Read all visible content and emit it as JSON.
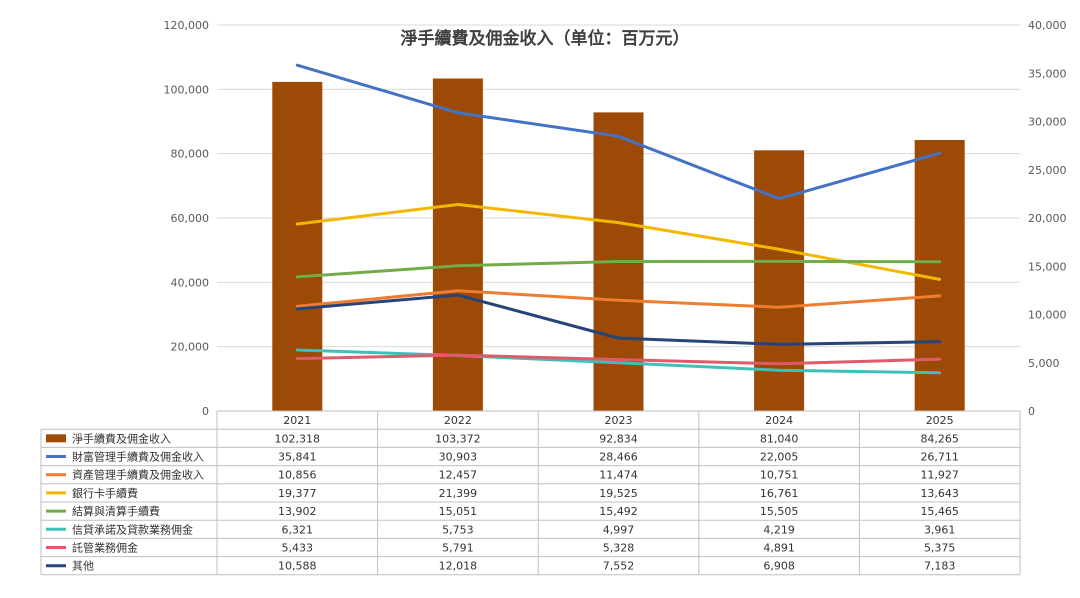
{
  "chart_data": {
    "type": "bar+line",
    "title": "淨手續費及佣金收入（单位：百万元）",
    "categories": [
      "2021",
      "2022",
      "2023",
      "2024",
      "2025"
    ],
    "left_axis": {
      "ticks": [
        "0",
        "20,000",
        "40,000",
        "60,000",
        "80,000",
        "100,000",
        "120,000"
      ],
      "ylim": [
        0,
        120000
      ]
    },
    "right_axis": {
      "ticks": [
        "0",
        "5,000",
        "10,000",
        "15,000",
        "20,000",
        "25,000",
        "30,000",
        "35,000",
        "40,000"
      ],
      "ylim": [
        0,
        40000
      ]
    },
    "grid": true,
    "legend": "data-table",
    "series": [
      {
        "name": "淨手續費及佣金收入",
        "kind": "bar",
        "axis": "left",
        "color": "#9c4a06",
        "values": [
          102318,
          103372,
          92834,
          81040,
          84265
        ],
        "labels": [
          "102,318",
          "103,372",
          "92,834",
          "81,040",
          "84,265"
        ]
      },
      {
        "name": "財富管理手續費及佣金收入",
        "kind": "line",
        "axis": "right",
        "color": "#4472c4",
        "values": [
          35841,
          30903,
          28466,
          22005,
          26711
        ],
        "labels": [
          "35,841",
          "30,903",
          "28,466",
          "22,005",
          "26,711"
        ]
      },
      {
        "name": "資產管理手續費及佣金收入",
        "kind": "line",
        "axis": "right",
        "color": "#ed7d31",
        "values": [
          10856,
          12457,
          11474,
          10751,
          11927
        ],
        "labels": [
          "10,856",
          "12,457",
          "11,474",
          "10,751",
          "11,927"
        ]
      },
      {
        "name": "銀行卡手續費",
        "kind": "line",
        "axis": "right",
        "color": "#f2b800",
        "values": [
          19377,
          21399,
          19525,
          16761,
          13643
        ],
        "labels": [
          "19,377",
          "21,399",
          "19,525",
          "16,761",
          "13,643"
        ]
      },
      {
        "name": "結算與清算手續費",
        "kind": "line",
        "axis": "right",
        "color": "#70ad47",
        "values": [
          13902,
          15051,
          15492,
          15505,
          15465
        ],
        "labels": [
          "13,902",
          "15,051",
          "15,492",
          "15,505",
          "15,465"
        ]
      },
      {
        "name": "信貸承諾及貸款業務佣金",
        "kind": "line",
        "axis": "right",
        "color": "#3fbfb7",
        "values": [
          6321,
          5753,
          4997,
          4219,
          3961
        ],
        "labels": [
          "6,321",
          "5,753",
          "4,997",
          "4,219",
          "3,961"
        ]
      },
      {
        "name": "託管業務佣金",
        "kind": "line",
        "axis": "right",
        "color": "#e05a6a",
        "values": [
          5433,
          5791,
          5328,
          4891,
          5375
        ],
        "labels": [
          "5,433",
          "5,791",
          "5,328",
          "4,891",
          "5,375"
        ]
      },
      {
        "name": "其他",
        "kind": "line",
        "axis": "right",
        "color": "#264478",
        "values": [
          10588,
          12018,
          7552,
          6908,
          7183
        ],
        "labels": [
          "10,588",
          "12,018",
          "7,552",
          "6,908",
          "7,183"
        ]
      }
    ]
  }
}
